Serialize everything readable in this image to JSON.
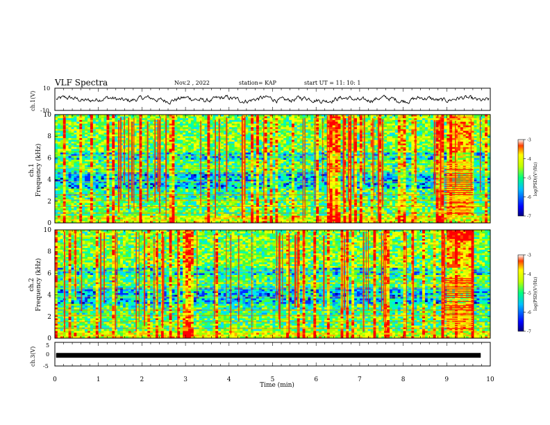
{
  "header": {
    "title": "VLF Spectra",
    "date": "Nov.2  , 2022",
    "station": "station= KAP",
    "start": "start  UT  =   11: 10: 1"
  },
  "chart_data": [
    {
      "type": "line",
      "ylabel": "ch.1(V)",
      "ylim": [
        -10,
        10
      ],
      "yticks": [
        "10",
        "-10"
      ],
      "xlim": [
        0,
        10
      ],
      "description_values": {
        "mean": 0,
        "typical_amplitude": 3
      }
    },
    {
      "type": "heatmap",
      "ylabel": "ch.1\nFrequency (kHz)",
      "ylabel_lines": [
        "ch.1",
        "Frequency  (kHz)"
      ],
      "ylim": [
        0,
        10
      ],
      "yticks": [
        "0",
        "2",
        "4",
        "6",
        "8",
        "10"
      ],
      "xlim": [
        0,
        10
      ],
      "colorbar": {
        "label": "log(PSD)(V²/Hz)",
        "range": [
          -7,
          -3
        ],
        "ticks": [
          "-3",
          "-4",
          "-5",
          "-6",
          "-7"
        ]
      }
    },
    {
      "type": "heatmap",
      "ylabel_lines": [
        "ch.2",
        "Frequency  (kHz)"
      ],
      "ylim": [
        0,
        10
      ],
      "yticks": [
        "0",
        "2",
        "4",
        "6",
        "8",
        "10"
      ],
      "xlim": [
        0,
        10
      ],
      "colorbar": {
        "label": "log(PSD)(V²/Hz)",
        "range": [
          -7,
          -3
        ],
        "ticks": [
          "-3",
          "-4",
          "-5",
          "-6",
          "-7"
        ]
      }
    },
    {
      "type": "line",
      "ylabel": "ch.3(V)",
      "ylim": [
        -5,
        5
      ],
      "yticks": [
        "5",
        "0",
        "-5"
      ],
      "xlim": [
        0,
        10
      ],
      "xlabel": "Time  (min)",
      "xticks": [
        "0",
        "1",
        "2",
        "3",
        "4",
        "5",
        "6",
        "7",
        "8",
        "9",
        "10"
      ],
      "description_values": {
        "mean": -0.5,
        "band_halfwidth": 0.5
      }
    }
  ],
  "colorbar_ticks": [
    "-3",
    "-4",
    "-5",
    "-6",
    "-7"
  ],
  "colorbar_label": "log(PSD)(V²/Hz)"
}
